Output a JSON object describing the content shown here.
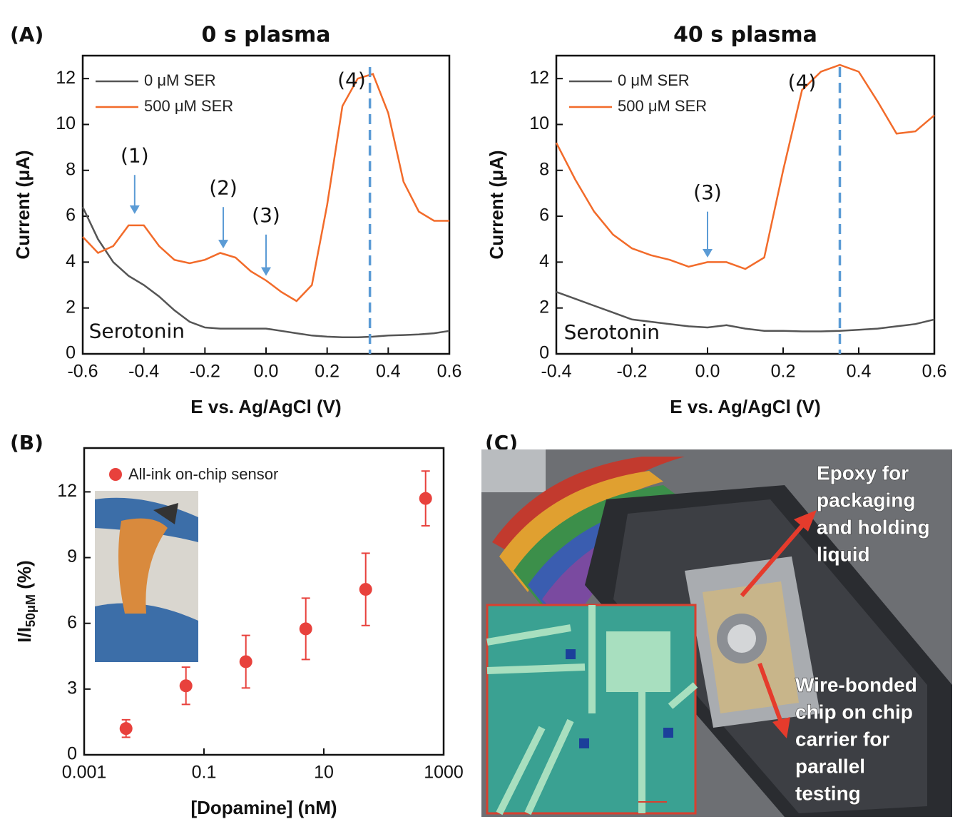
{
  "chart_data": [
    {
      "type": "line",
      "panel": "(A)",
      "title": "0 s plasma",
      "xlabel": "E vs. Ag/AgCl (V)",
      "ylabel": "Current (μA)",
      "x": [
        -0.6,
        -0.55,
        -0.5,
        -0.45,
        -0.4,
        -0.35,
        -0.3,
        -0.25,
        -0.2,
        -0.15,
        -0.1,
        -0.05,
        0,
        0.05,
        0.1,
        0.15,
        0.2,
        0.25,
        0.3,
        0.35,
        0.4,
        0.45,
        0.5,
        0.55,
        0.6
      ],
      "series": [
        {
          "name": "0 μM SER",
          "color": "#555555",
          "values": [
            6.4,
            5.0,
            4.0,
            3.4,
            3.0,
            2.5,
            1.9,
            1.4,
            1.15,
            1.1,
            1.1,
            1.1,
            1.1,
            1.0,
            0.9,
            0.8,
            0.75,
            0.72,
            0.72,
            0.75,
            0.8,
            0.82,
            0.85,
            0.9,
            1.0
          ]
        },
        {
          "name": "500 μM SER",
          "color": "#f26b2a",
          "values": [
            5.1,
            4.4,
            4.7,
            5.6,
            5.6,
            4.7,
            4.1,
            3.95,
            4.1,
            4.4,
            4.2,
            3.6,
            3.2,
            2.7,
            2.3,
            3.0,
            6.5,
            10.8,
            12.0,
            12.2,
            10.5,
            7.5,
            6.2,
            5.8,
            5.8
          ]
        }
      ],
      "vline": 0.34,
      "vline_color": "#5b9bd5",
      "xlim": [
        -0.6,
        0.6
      ],
      "xticks": [
        -0.6,
        -0.4,
        -0.2,
        {
          "value": 0,
          "label": "0.0"
        },
        0.2,
        0.4,
        0.6
      ],
      "ylim": [
        0,
        13
      ],
      "yticks": [
        0,
        2,
        4,
        6,
        8,
        10,
        12
      ],
      "annotations": [
        "(1)",
        "(2)",
        "(3)",
        "(4)",
        "Serotonin"
      ],
      "annotation_color": "#e8413c",
      "arrow_color": "#5b9bd5"
    },
    {
      "type": "line",
      "title": "40 s plasma",
      "xlabel": "E vs. Ag/AgCl (V)",
      "ylabel": "Current (μA)",
      "x": [
        -0.4,
        -0.35,
        -0.3,
        -0.25,
        -0.2,
        -0.15,
        -0.1,
        -0.05,
        0,
        0.05,
        0.1,
        0.15,
        0.2,
        0.25,
        0.3,
        0.35,
        0.4,
        0.45,
        0.5,
        0.55,
        0.6
      ],
      "series": [
        {
          "name": "0 μM SER",
          "color": "#555555",
          "values": [
            2.7,
            2.4,
            2.1,
            1.8,
            1.5,
            1.4,
            1.3,
            1.2,
            1.15,
            1.25,
            1.1,
            1.0,
            1.0,
            0.98,
            0.98,
            1.0,
            1.05,
            1.1,
            1.2,
            1.3,
            1.5
          ]
        },
        {
          "name": "500 μM SER",
          "color": "#f26b2a",
          "values": [
            9.2,
            7.6,
            6.2,
            5.2,
            4.6,
            4.3,
            4.1,
            3.8,
            4.0,
            4.0,
            3.7,
            4.2,
            8.0,
            11.5,
            12.3,
            12.6,
            12.3,
            11.0,
            9.6,
            9.7,
            10.4
          ]
        }
      ],
      "vline": 0.35,
      "vline_color": "#5b9bd5",
      "xlim": [
        -0.4,
        0.6
      ],
      "xticks": [
        -0.4,
        -0.2,
        {
          "value": 0,
          "label": "0.0"
        },
        0.2,
        0.4,
        0.6
      ],
      "ylim": [
        0,
        13
      ],
      "yticks": [
        0,
        2,
        4,
        6,
        8,
        10,
        12
      ],
      "annotations": [
        "(3)",
        "(4)",
        "Serotonin"
      ],
      "annotation_color": "#e8413c",
      "arrow_color": "#5b9bd5"
    },
    {
      "type": "scatter",
      "panel": "(B)",
      "xlabel": "[Dopamine] (nM)",
      "ylabel": {
        "main": "I/I",
        "sub": "50μM",
        "unit": " (%)"
      },
      "xscale": "log",
      "series": [
        {
          "name": "All-ink on-chip sensor",
          "color": "#e8413c",
          "x": [
            0.005,
            0.05,
            0.5,
            5,
            50,
            500
          ],
          "values": [
            1.2,
            3.15,
            4.25,
            5.75,
            7.55,
            11.7
          ],
          "errors": [
            0.4,
            0.85,
            1.2,
            1.4,
            1.65,
            1.25
          ]
        }
      ],
      "xlim": [
        0.001,
        1000
      ],
      "xticks": [
        0.001,
        0.1,
        10,
        1000
      ],
      "ylim": [
        0,
        14
      ],
      "yticks": [
        0,
        3,
        6,
        9,
        12
      ]
    }
  ],
  "panel_c": {
    "label": "(C)",
    "annotations": [
      [
        "Epoxy for",
        "packaging",
        "and holding",
        "liquid"
      ],
      [
        "Wire-bonded",
        "chip on chip",
        "carrier for",
        "parallel",
        "testing"
      ]
    ]
  }
}
